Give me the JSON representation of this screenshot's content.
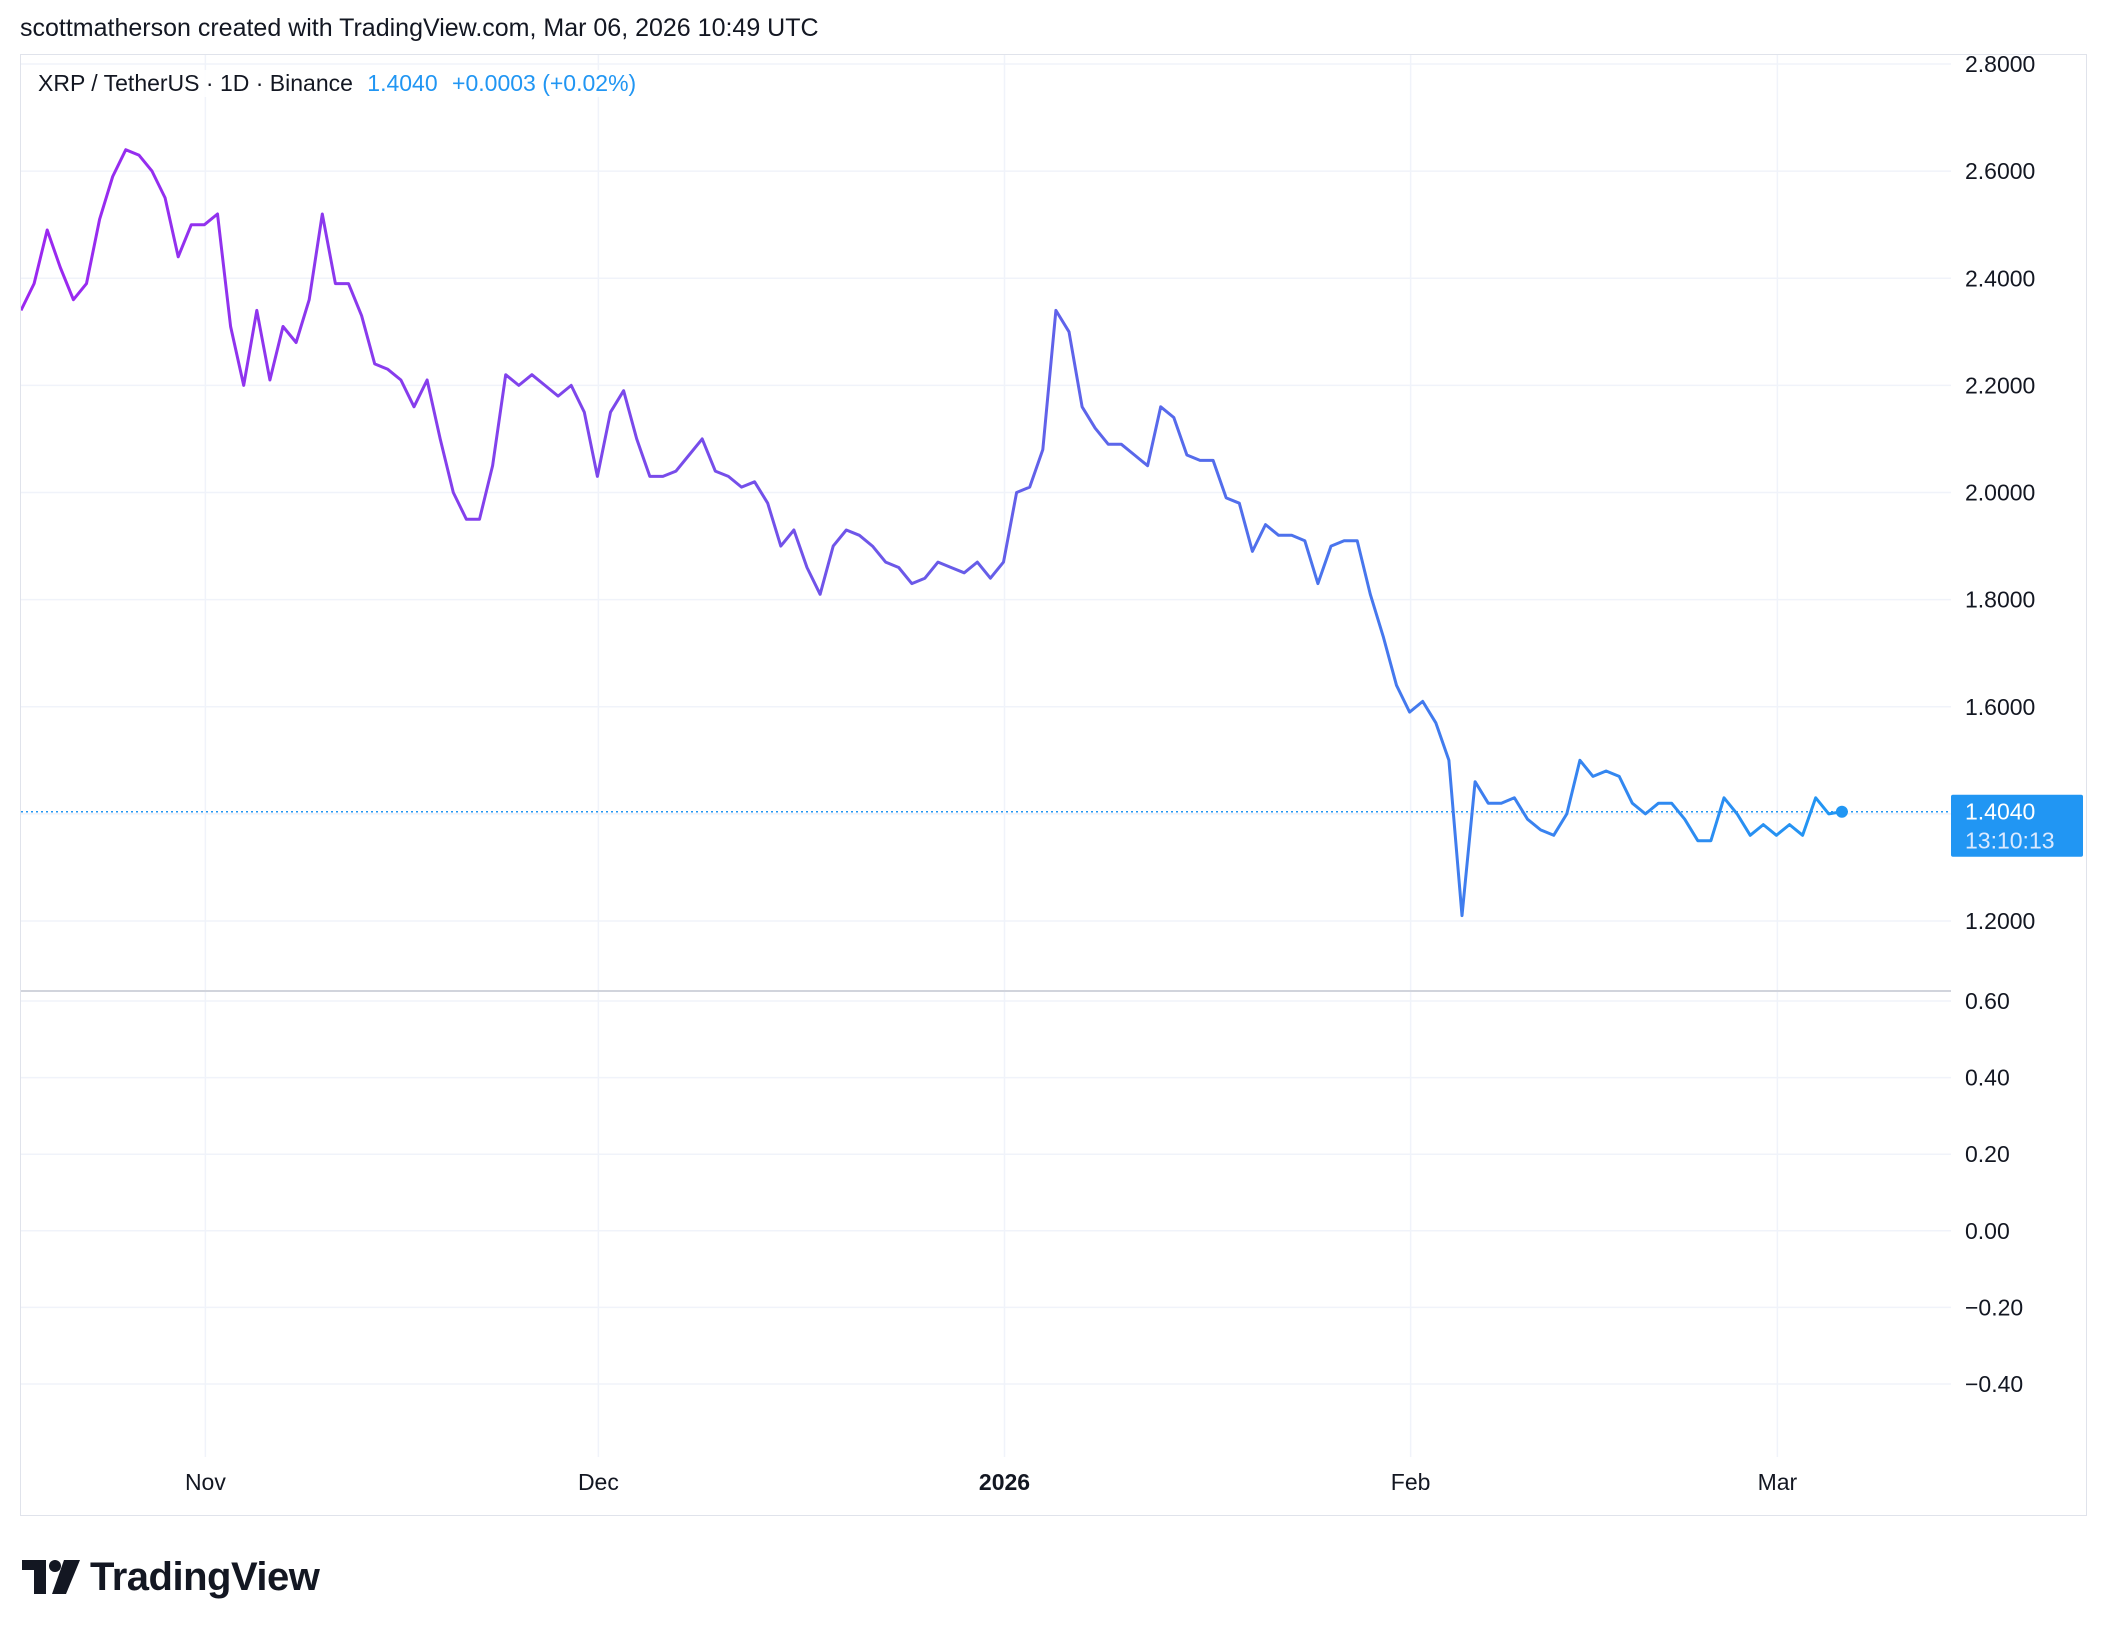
{
  "header": {
    "text": "scottmatherson created with TradingView.com, Mar 06, 2026 10:49 UTC"
  },
  "legend": {
    "symbol": "XRP / TetherUS · 1D · Binance",
    "price": "1.4040",
    "change": "+0.0003 (+0.02%)"
  },
  "price_badge": {
    "price": "1.4040",
    "countdown": "13:10:13"
  },
  "footer": {
    "brand": "TradingView"
  },
  "colors": {
    "line_start": "#9c27f0",
    "line_mid": "#6a5ae8",
    "line_end": "#2196f3",
    "accent": "#2196f3",
    "grid": "#f0f3fa"
  },
  "chart_data": [
    {
      "type": "line",
      "title": "XRP / TetherUS · 1D · Binance",
      "xlabel": "",
      "ylabel": "",
      "x_tick_labels": [
        "Nov",
        "Dec",
        "2026",
        "Feb",
        "Mar"
      ],
      "y_tick_labels": [
        "2.8000",
        "2.6000",
        "2.4000",
        "2.2000",
        "2.0000",
        "1.8000",
        "1.6000",
        "1.2000"
      ],
      "ylim": [
        1.12,
        2.84
      ],
      "grid": true,
      "last_value": 1.404,
      "x_start": "2025-10-18",
      "series": [
        {
          "values": [
            2.34,
            2.39,
            2.49,
            2.42,
            2.36,
            2.39,
            2.51,
            2.59,
            2.64,
            2.63,
            2.6,
            2.55,
            2.44,
            2.5,
            2.5,
            2.52,
            2.31,
            2.2,
            2.34,
            2.21,
            2.31,
            2.28,
            2.36,
            2.52,
            2.39,
            2.39,
            2.33,
            2.24,
            2.23,
            2.21,
            2.16,
            2.21,
            2.1,
            2.0,
            1.95,
            1.95,
            2.05,
            2.22,
            2.2,
            2.22,
            2.2,
            2.18,
            2.2,
            2.15,
            2.03,
            2.15,
            2.19,
            2.1,
            2.03,
            2.03,
            2.04,
            2.07,
            2.1,
            2.04,
            2.03,
            2.01,
            2.02,
            1.98,
            1.9,
            1.93,
            1.86,
            1.81,
            1.9,
            1.93,
            1.92,
            1.9,
            1.87,
            1.86,
            1.83,
            1.84,
            1.87,
            1.86,
            1.85,
            1.87,
            1.84,
            1.87,
            2.0,
            2.01,
            2.08,
            2.34,
            2.3,
            2.16,
            2.12,
            2.09,
            2.09,
            2.07,
            2.05,
            2.16,
            2.14,
            2.07,
            2.06,
            2.06,
            1.99,
            1.98,
            1.89,
            1.94,
            1.92,
            1.92,
            1.91,
            1.83,
            1.9,
            1.91,
            1.91,
            1.81,
            1.73,
            1.64,
            1.59,
            1.61,
            1.57,
            1.5,
            1.21,
            1.46,
            1.42,
            1.42,
            1.43,
            1.39,
            1.37,
            1.36,
            1.4,
            1.5,
            1.47,
            1.48,
            1.47,
            1.42,
            1.4,
            1.42,
            1.42,
            1.39,
            1.35,
            1.35,
            1.43,
            1.4,
            1.36,
            1.38,
            1.36,
            1.38,
            1.36,
            1.43,
            1.4,
            1.404
          ]
        }
      ]
    },
    {
      "type": "line",
      "title": "",
      "series": [],
      "y_tick_labels": [
        "0.60",
        "0.40",
        "0.20",
        "0.00",
        "−0.20",
        "−0.40"
      ],
      "ylim": [
        -0.6,
        0.65
      ],
      "grid": true
    }
  ]
}
